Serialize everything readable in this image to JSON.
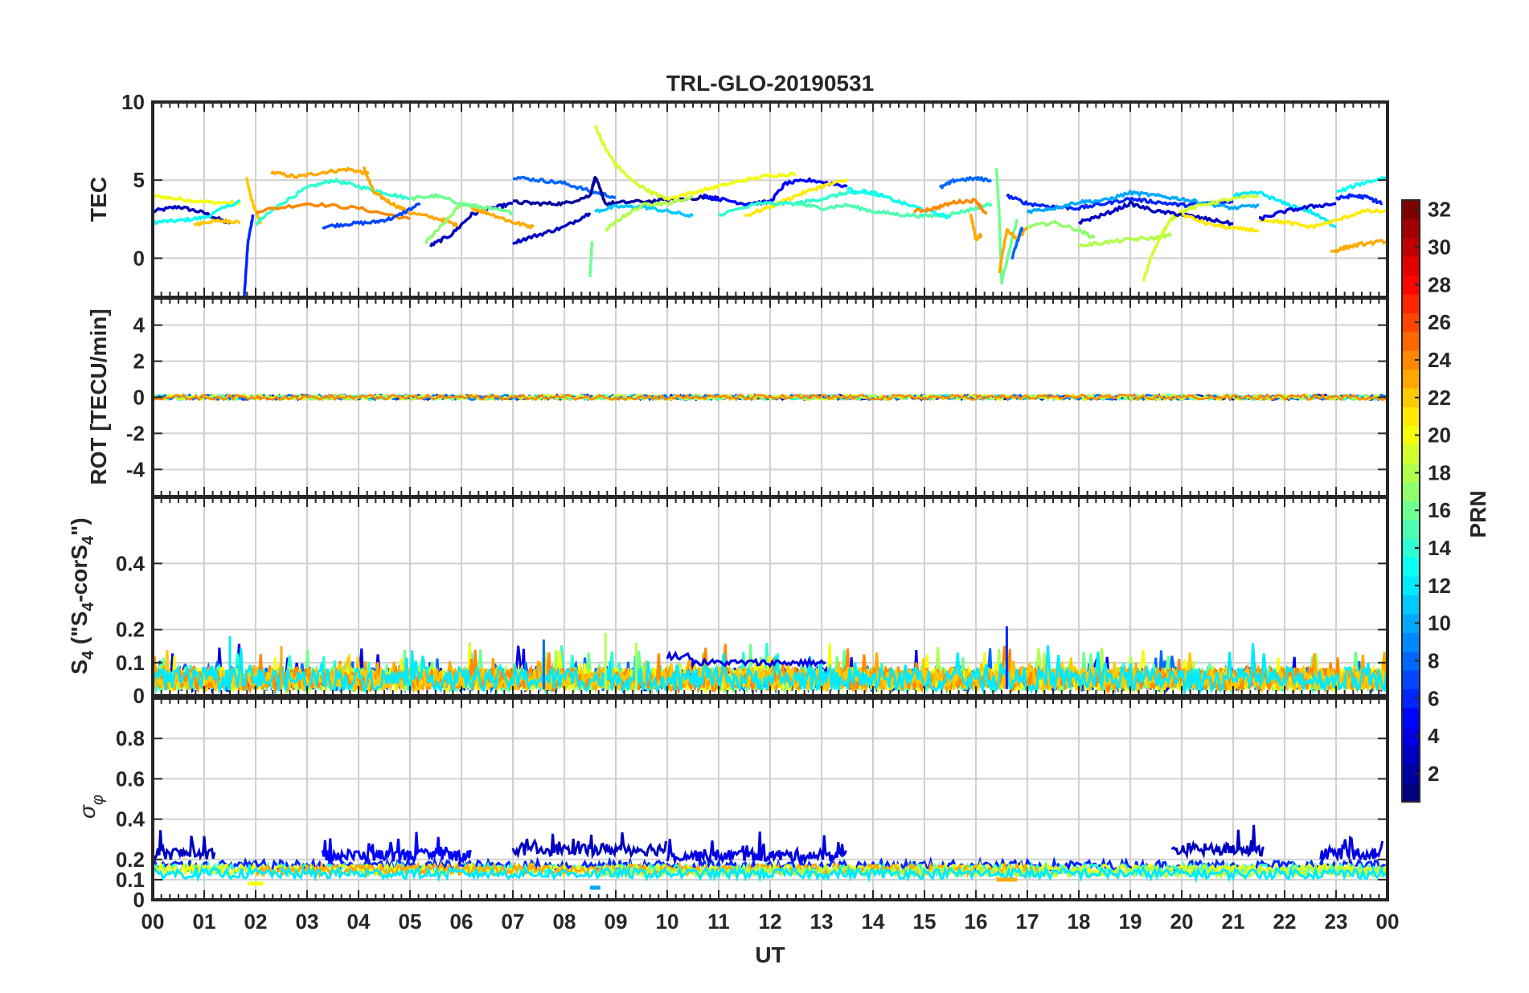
{
  "chart_data": {
    "type": "line",
    "title": "TRL-GLO-20190531",
    "xlabel": "UT",
    "x_ticks": [
      "00",
      "01",
      "02",
      "03",
      "04",
      "05",
      "06",
      "07",
      "08",
      "09",
      "10",
      "11",
      "12",
      "13",
      "14",
      "15",
      "16",
      "17",
      "18",
      "19",
      "20",
      "21",
      "22",
      "23",
      "00"
    ],
    "xlim": [
      0,
      24
    ],
    "colorbar": {
      "label": "PRN",
      "range": [
        1,
        32
      ],
      "ticks": [
        "2",
        "4",
        "6",
        "8",
        "10",
        "12",
        "14",
        "16",
        "18",
        "20",
        "22",
        "24",
        "26",
        "28",
        "30",
        "32"
      ],
      "colormap": "jet"
    },
    "panels": [
      {
        "id": "tec",
        "ylabel": "TEC",
        "ylim": [
          -2.5,
          10
        ],
        "yticks": [
          "0",
          "5",
          "10"
        ],
        "series": [
          {
            "prn": 3,
            "x": [
              0,
              0.5,
              1.0,
              1.5
            ],
            "y": [
              3.0,
              3.3,
              2.9,
              2.2
            ]
          },
          {
            "prn": 20,
            "x": [
              0,
              0.5,
              1.0,
              1.7
            ],
            "y": [
              4.0,
              3.8,
              3.6,
              3.5
            ]
          },
          {
            "prn": 13,
            "x": [
              0,
              0.5,
              1.0,
              1.7
            ],
            "y": [
              2.3,
              2.4,
              2.6,
              3.7
            ]
          },
          {
            "prn": 22,
            "x": [
              0.8,
              1.0,
              1.4,
              1.7
            ],
            "y": [
              2.1,
              2.3,
              2.4,
              2.3
            ]
          },
          {
            "prn": 6,
            "x": [
              1.78,
              1.85,
              1.95
            ],
            "y": [
              -2.4,
              1.0,
              2.8
            ]
          },
          {
            "prn": 22,
            "x": [
              1.82,
              1.9,
              2.0,
              2.1
            ],
            "y": [
              5.2,
              4.0,
              3.0,
              2.2
            ]
          },
          {
            "prn": 23,
            "x": [
              2.3,
              2.8,
              3.3,
              3.8,
              4.2
            ],
            "y": [
              5.5,
              5.2,
              5.5,
              5.7,
              5.4
            ]
          },
          {
            "prn": 14,
            "x": [
              2.0,
              2.5,
              3.0,
              3.5,
              4.0,
              4.5,
              5.0
            ],
            "y": [
              2.2,
              3.5,
              4.5,
              5.0,
              4.6,
              4.2,
              3.8
            ]
          },
          {
            "prn": 24,
            "x": [
              2.0,
              3.0,
              4.0,
              5.0
            ],
            "y": [
              3.0,
              3.5,
              3.2,
              2.5
            ]
          },
          {
            "prn": 23,
            "x": [
              4.1,
              4.3,
              4.6,
              5.0,
              5.6,
              6.0
            ],
            "y": [
              5.8,
              4.2,
              3.6,
              2.9,
              2.5,
              2.0
            ]
          },
          {
            "prn": 7,
            "x": [
              3.3,
              3.8,
              4.3,
              4.7,
              5.2
            ],
            "y": [
              2.0,
              2.2,
              2.3,
              2.6,
              3.5
            ]
          },
          {
            "prn": 3,
            "x": [
              5.4,
              5.8,
              6.2,
              6.6,
              7.0
            ],
            "y": [
              0.8,
              1.5,
              2.8,
              3.2,
              3.5
            ]
          },
          {
            "prn": 17,
            "x": [
              5.3,
              5.6,
              6.0,
              6.5
            ],
            "y": [
              1.0,
              2.0,
              3.5,
              3.0
            ]
          },
          {
            "prn": 16,
            "x": [
              5.0,
              5.5,
              6.0,
              6.5,
              7.0
            ],
            "y": [
              3.8,
              4.0,
              3.5,
              3.2,
              2.9
            ]
          },
          {
            "prn": 23,
            "x": [
              6.2,
              6.6,
              7.0,
              7.4
            ],
            "y": [
              3.2,
              2.8,
              2.3,
              2.0
            ]
          },
          {
            "prn": 3,
            "x": [
              7.0,
              7.5,
              8.0,
              8.5
            ],
            "y": [
              1.0,
              1.5,
              2.0,
              2.9
            ]
          },
          {
            "prn": 8,
            "x": [
              7.0,
              7.5,
              8.0,
              8.5,
              9.0
            ],
            "y": [
              5.2,
              5.0,
              4.8,
              4.3,
              3.9
            ]
          },
          {
            "prn": 2,
            "x": [
              7.0,
              7.5,
              8.0,
              8.5,
              8.6,
              8.8,
              9.3,
              10.0,
              10.7,
              11.0
            ],
            "y": [
              3.6,
              3.5,
              3.5,
              4.0,
              5.2,
              3.5,
              3.6,
              3.7,
              3.9,
              3.8
            ]
          },
          {
            "prn": 19,
            "x": [
              8.6,
              8.8,
              9.0,
              9.3,
              9.7,
              10.0
            ],
            "y": [
              8.5,
              7.0,
              6.0,
              5.0,
              4.2,
              3.8
            ]
          },
          {
            "prn": 16,
            "x": [
              8.5,
              8.52,
              8.54
            ],
            "y": [
              -1.2,
              0.0,
              1.0
            ]
          },
          {
            "prn": 11,
            "x": [
              8.6,
              9.0,
              9.5,
              10.0,
              10.5
            ],
            "y": [
              3.0,
              3.3,
              3.3,
              3.0,
              2.7
            ]
          },
          {
            "prn": 18,
            "x": [
              8.8,
              9.2,
              9.6,
              10.0,
              10.5
            ],
            "y": [
              1.8,
              2.8,
              3.5,
              3.5,
              3.9
            ]
          },
          {
            "prn": 20,
            "x": [
              10.0,
              10.5,
              11.0,
              11.5,
              12.0,
              12.5
            ],
            "y": [
              3.8,
              4.2,
              4.6,
              5.0,
              5.3,
              5.4
            ]
          },
          {
            "prn": 5,
            "x": [
              10.7,
              11.0,
              11.5,
              12.0,
              12.3,
              12.8,
              13.5
            ],
            "y": [
              4.0,
              3.8,
              3.5,
              3.6,
              4.8,
              5.0,
              4.6
            ]
          },
          {
            "prn": 21,
            "x": [
              11.5,
              12.0,
              12.5,
              13.0,
              13.5
            ],
            "y": [
              2.7,
              3.3,
              4.0,
              4.6,
              5.0
            ]
          },
          {
            "prn": 14,
            "x": [
              11.0,
              11.8,
              12.5,
              13.0,
              13.5,
              14.2
            ],
            "y": [
              2.8,
              3.5,
              3.5,
              3.8,
              4.2,
              4.0
            ]
          },
          {
            "prn": 15,
            "x": [
              12.5,
              13.0,
              13.5,
              14.0,
              14.5,
              15.0,
              15.5,
              16.0,
              16.3
            ],
            "y": [
              3.5,
              3.2,
              3.4,
              3.0,
              2.8,
              2.7,
              2.8,
              3.2,
              3.5
            ]
          },
          {
            "prn": 13,
            "x": [
              13.5,
              14.0,
              14.5,
              15.0,
              15.5
            ],
            "y": [
              4.4,
              4.2,
              3.6,
              3.1,
              2.6
            ]
          },
          {
            "prn": 24,
            "x": [
              14.8,
              15.2,
              15.6,
              16.0,
              16.2
            ],
            "y": [
              3.0,
              3.2,
              3.6,
              3.7,
              2.8
            ]
          },
          {
            "prn": 8,
            "x": [
              15.3,
              15.6,
              16.0,
              16.3
            ],
            "y": [
              4.5,
              5.0,
              5.1,
              5.0
            ]
          },
          {
            "prn": 23,
            "x": [
              15.9,
              16.0,
              16.1
            ],
            "y": [
              2.8,
              1.2,
              1.5
            ]
          },
          {
            "prn": 16,
            "x": [
              16.4,
              16.45,
              16.5,
              16.8
            ],
            "y": [
              5.8,
              3.0,
              -1.5,
              2.5
            ]
          },
          {
            "prn": 23,
            "x": [
              16.45,
              16.6,
              16.8,
              17.0
            ],
            "y": [
              -1.0,
              1.8,
              1.2,
              2.0
            ]
          },
          {
            "prn": 8,
            "x": [
              16.7,
              16.8,
              16.9
            ],
            "y": [
              0.0,
              1.0,
              2.0
            ]
          },
          {
            "prn": 6,
            "x": [
              16.6,
              17.0,
              17.5,
              18.0,
              18.5,
              19.0,
              19.5,
              20.0,
              20.5,
              21.0
            ],
            "y": [
              4.0,
              3.5,
              3.3,
              3.2,
              3.5,
              3.8,
              3.6,
              3.4,
              3.5,
              3.6
            ]
          },
          {
            "prn": 10,
            "x": [
              17.0,
              17.5,
              18.0,
              18.5,
              19.0,
              19.5,
              20.0,
              20.5,
              21.0,
              21.5
            ],
            "y": [
              3.0,
              3.2,
              3.6,
              3.7,
              4.2,
              4.0,
              3.8,
              3.5,
              3.2,
              3.4
            ]
          },
          {
            "prn": 17,
            "x": [
              17.0,
              17.5,
              18.0,
              18.3
            ],
            "y": [
              2.0,
              2.3,
              1.8,
              1.3
            ]
          },
          {
            "prn": 18,
            "x": [
              18.0,
              18.5,
              19.0,
              19.5,
              19.8
            ],
            "y": [
              0.8,
              1.0,
              1.2,
              1.3,
              1.5
            ]
          },
          {
            "prn": 19,
            "x": [
              19.25,
              19.4,
              19.6,
              19.8,
              20.0,
              20.5,
              21.0,
              21.5
            ],
            "y": [
              -1.5,
              0.0,
              1.5,
              2.5,
              3.0,
              3.5,
              3.8,
              4.0
            ]
          },
          {
            "prn": 3,
            "x": [
              18.0,
              18.5,
              19.0,
              19.5,
              20.0,
              20.5,
              21.0
            ],
            "y": [
              2.3,
              2.8,
              3.5,
              3.0,
              2.8,
              2.5,
              2.2
            ]
          },
          {
            "prn": 21,
            "x": [
              20.0,
              20.5,
              21.0,
              21.5
            ],
            "y": [
              2.8,
              2.2,
              1.9,
              1.8
            ]
          },
          {
            "prn": 12,
            "x": [
              21.0,
              21.5,
              22.0,
              22.5,
              23.0
            ],
            "y": [
              4.0,
              4.2,
              3.5,
              3.0,
              2.0
            ]
          },
          {
            "prn": 21,
            "x": [
              21.5,
              22.0,
              22.5,
              23.0,
              23.5,
              24.0
            ],
            "y": [
              2.5,
              2.3,
              2.0,
              2.4,
              3.0,
              3.0
            ]
          },
          {
            "prn": 4,
            "x": [
              21.5,
              22.0,
              22.5,
              23.0
            ],
            "y": [
              2.5,
              3.0,
              3.3,
              3.5
            ]
          },
          {
            "prn": 6,
            "x": [
              23.0,
              23.3,
              23.6,
              23.9
            ],
            "y": [
              3.8,
              4.0,
              3.9,
              3.5
            ]
          },
          {
            "prn": 13,
            "x": [
              23.0,
              23.5,
              24.0
            ],
            "y": [
              4.2,
              4.8,
              5.2
            ]
          },
          {
            "prn": 23,
            "x": [
              22.9,
              23.2,
              23.5,
              24.0
            ],
            "y": [
              0.4,
              0.7,
              0.9,
              1.1
            ]
          }
        ]
      },
      {
        "id": "rot",
        "ylabel": "ROT [TECU/min]",
        "ylim": [
          -5.5,
          5.5
        ],
        "yticks": [
          "-4",
          "-2",
          "0",
          "2",
          "4"
        ],
        "series_note": "all PRNs near 0 TECU/min (|ROT| < 0.2)"
      },
      {
        "id": "s4",
        "ylabel": "S4 (\"S4-corS4\")",
        "ylim": [
          0,
          0.6
        ],
        "yticks": [
          "0",
          "0.1",
          "0.2",
          "0.4"
        ],
        "series_note": "noisy values 0–0.2, typical 0.02–0.12; PRN 4 around 0.1 between 10–13 UT"
      },
      {
        "id": "sigma",
        "ylabel": "σφ",
        "ylim": [
          0,
          1
        ],
        "yticks": [
          "0",
          "0.1",
          "0.2",
          "0.4",
          "0.6",
          "0.8"
        ],
        "series_note": "mostly 0.12–0.2; PRN 2/3 up to 0.35 around 7–10 UT and 20–21.5 UT"
      }
    ]
  }
}
